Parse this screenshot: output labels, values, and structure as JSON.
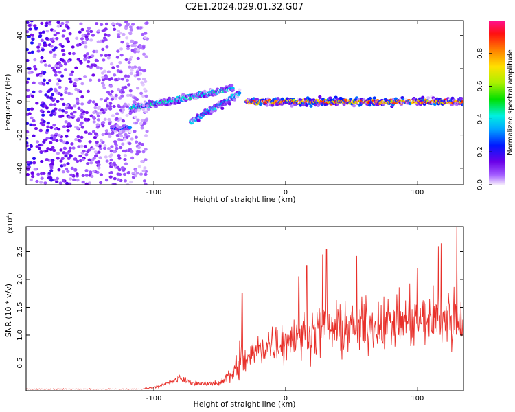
{
  "title": "C2E1.2024.029.01.32.G07",
  "colors": {
    "snr_line": "#e8302a",
    "axis": "#000000",
    "background": "#ffffff"
  },
  "chart_data": [
    {
      "type": "heatmap",
      "xlabel": "Height of straight line (km)",
      "ylabel": "Frequency (Hz)",
      "xlim": [
        -197,
        135
      ],
      "ylim": [
        -50,
        49
      ],
      "xticks": [
        -100,
        0,
        100
      ],
      "yticks": [
        -40,
        -20,
        0,
        20,
        40
      ],
      "colorbar": {
        "label": "Normalized spectral amplitude",
        "range": [
          0,
          1
        ],
        "ticks": [
          "0.0",
          "0.2",
          "0.4",
          "0.6",
          "0.8"
        ],
        "colormap": "rainbow (violet→blue→cyan→green→yellow→orange→red→magenta)"
      },
      "features": [
        {
          "name": "high-amplitude carrier",
          "x_range": [
            -30,
            135
          ],
          "freq_hz": 0,
          "amplitude": 0.9
        },
        {
          "name": "rising branch",
          "x_range": [
            -118,
            -40
          ],
          "freq_hz": [
            -4,
            8
          ],
          "amplitude": 0.45
        },
        {
          "name": "lower branch",
          "x_range": [
            -72,
            -35
          ],
          "freq_hz": [
            -12,
            5
          ],
          "amplitude": 0.4
        },
        {
          "name": "short branch",
          "x_range": [
            -132,
            -118
          ],
          "freq_hz": -16,
          "amplitude": 0.3
        },
        {
          "name": "diffuse noise",
          "x_range": [
            -197,
            -105
          ],
          "freq_hz": [
            -50,
            49
          ],
          "amplitude": 0.15
        }
      ]
    },
    {
      "type": "line",
      "xlabel": "Height of straight line (km)",
      "ylabel": "SNR (10 * v/v)",
      "yscale_label": "(x10",
      "yscale_exp": "4",
      "multiplier": 10000,
      "xlim": [
        -197,
        135
      ],
      "ylim": [
        0,
        2.95
      ],
      "xticks": [
        -100,
        0,
        100
      ],
      "yticks": [
        "0.5",
        "1.0",
        "1.5",
        "2.0",
        "2.5"
      ],
      "envelope": {
        "x": [
          -197,
          -150,
          -110,
          -100,
          -90,
          -80,
          -70,
          -60,
          -50,
          -40,
          -35,
          -30,
          -25,
          -20,
          -10,
          0,
          10,
          20,
          30,
          40,
          50,
          60,
          70,
          80,
          90,
          100,
          110,
          120,
          130,
          135
        ],
        "mean": [
          0.03,
          0.03,
          0.03,
          0.06,
          0.13,
          0.22,
          0.14,
          0.12,
          0.15,
          0.3,
          0.55,
          0.55,
          0.65,
          0.75,
          0.85,
          0.9,
          1.0,
          1.05,
          1.1,
          1.1,
          1.15,
          1.15,
          1.2,
          1.2,
          1.25,
          1.25,
          1.3,
          1.3,
          1.3,
          1.3
        ],
        "spread": [
          0.02,
          0.02,
          0.02,
          0.04,
          0.1,
          0.2,
          0.1,
          0.1,
          0.15,
          0.5,
          1.0,
          0.9,
          0.8,
          0.9,
          1.0,
          1.0,
          1.1,
          1.2,
          1.2,
          1.3,
          1.3,
          1.3,
          1.3,
          1.3,
          1.3,
          1.4,
          1.4,
          1.5,
          1.6,
          1.5
        ]
      },
      "peaks": [
        {
          "x": -33,
          "y": 1.75
        },
        {
          "x": 10,
          "y": 2.05
        },
        {
          "x": 16,
          "y": 2.25
        },
        {
          "x": 28,
          "y": 2.45
        },
        {
          "x": 31,
          "y": 2.55
        },
        {
          "x": 54,
          "y": 2.42
        },
        {
          "x": 100,
          "y": 2.2
        },
        {
          "x": 116,
          "y": 2.6
        },
        {
          "x": 118,
          "y": 2.65
        },
        {
          "x": 130,
          "y": 2.95
        }
      ]
    }
  ]
}
